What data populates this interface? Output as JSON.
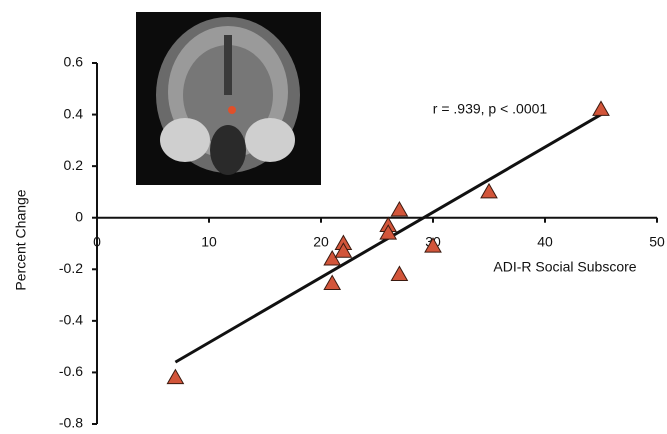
{
  "chart_data": {
    "type": "scatter",
    "x": [
      7,
      21,
      21,
      22,
      22,
      26,
      26,
      27,
      27,
      30,
      35,
      45
    ],
    "values": [
      -0.62,
      -0.16,
      -0.255,
      -0.1,
      -0.13,
      -0.03,
      -0.06,
      0.03,
      -0.22,
      -0.11,
      0.1,
      0.42
    ],
    "color": "#d2553a",
    "fit": {
      "x": [
        7,
        45
      ],
      "y": [
        -0.56,
        0.4
      ]
    },
    "xlim": [
      0,
      50
    ],
    "xticks": [
      0,
      10,
      20,
      30,
      40,
      50
    ],
    "ylim": [
      -0.8,
      0.6
    ],
    "yticks": [
      -0.8,
      -0.6,
      -0.4,
      -0.2,
      0,
      0.2,
      0.4,
      0.6
    ],
    "x_label": "ADI-R Social Subscore",
    "y_label": "Percent Change",
    "annotation": "r = .939, p < .0001"
  }
}
